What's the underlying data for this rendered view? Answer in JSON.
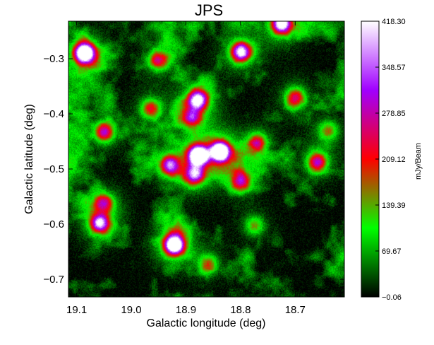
{
  "chart_data": {
    "type": "heatmap",
    "title": "JPS",
    "xlabel": "Galactic longitude (deg)",
    "ylabel": "Galactic latitude (deg)",
    "x_ticks": [
      {
        "value": 19.1,
        "label": "19.1"
      },
      {
        "value": 19.0,
        "label": "19.0"
      },
      {
        "value": 18.9,
        "label": "18.9"
      },
      {
        "value": 18.8,
        "label": "18.8"
      },
      {
        "value": 18.7,
        "label": "18.7"
      }
    ],
    "y_ticks": [
      {
        "value": -0.3,
        "label": "−0.3"
      },
      {
        "value": -0.4,
        "label": "−0.4"
      },
      {
        "value": -0.5,
        "label": "−0.5"
      },
      {
        "value": -0.6,
        "label": "−0.6"
      },
      {
        "value": -0.7,
        "label": "−0.7"
      }
    ],
    "xlim": [
      19.115,
      18.61
    ],
    "ylim": [
      -0.732,
      -0.232
    ],
    "colorbar": {
      "label": "mJy/Beam",
      "range": [
        -0.06,
        418.3
      ],
      "ticks": [
        {
          "value": 418.3,
          "label": "418.30"
        },
        {
          "value": 348.57,
          "label": "348.57"
        },
        {
          "value": 278.85,
          "label": "278.85"
        },
        {
          "value": 209.12,
          "label": "209.12"
        },
        {
          "value": 139.39,
          "label": "139.39"
        },
        {
          "value": 69.67,
          "label": "69.67"
        },
        {
          "value": -0.06,
          "label": "−0.06"
        }
      ],
      "colormap": [
        "#000000",
        "#00ff00",
        "#ff0000",
        "#a000ff",
        "#ffffff"
      ]
    },
    "emission_peaks": [
      {
        "l": 19.086,
        "b": -0.289,
        "peak": 418
      },
      {
        "l": 18.878,
        "b": -0.475,
        "peak": 418
      },
      {
        "l": 18.838,
        "b": -0.468,
        "peak": 418
      },
      {
        "l": 18.922,
        "b": -0.637,
        "peak": 418
      },
      {
        "l": 18.8,
        "b": -0.287,
        "peak": 300
      },
      {
        "l": 18.878,
        "b": -0.374,
        "peak": 300
      },
      {
        "l": 19.058,
        "b": -0.597,
        "peak": 280
      },
      {
        "l": 18.725,
        "b": -0.236,
        "peak": 350
      },
      {
        "l": 18.77,
        "b": -0.452,
        "peak": 170
      },
      {
        "l": 18.888,
        "b": -0.405,
        "peak": 180
      },
      {
        "l": 18.95,
        "b": -0.302,
        "peak": 160
      },
      {
        "l": 19.05,
        "b": -0.432,
        "peak": 200
      },
      {
        "l": 18.7,
        "b": -0.37,
        "peak": 170
      },
      {
        "l": 18.66,
        "b": -0.487,
        "peak": 200
      },
      {
        "l": 18.965,
        "b": -0.39,
        "peak": 150
      },
      {
        "l": 18.885,
        "b": -0.51,
        "peak": 220
      },
      {
        "l": 19.05,
        "b": -0.562,
        "peak": 160
      },
      {
        "l": 18.93,
        "b": -0.492,
        "peak": 240
      },
      {
        "l": 18.8,
        "b": -0.52,
        "peak": 150
      },
      {
        "l": 18.64,
        "b": -0.43,
        "peak": 110
      },
      {
        "l": 18.775,
        "b": -0.602,
        "peak": 100
      },
      {
        "l": 18.86,
        "b": -0.672,
        "peak": 120
      }
    ]
  }
}
